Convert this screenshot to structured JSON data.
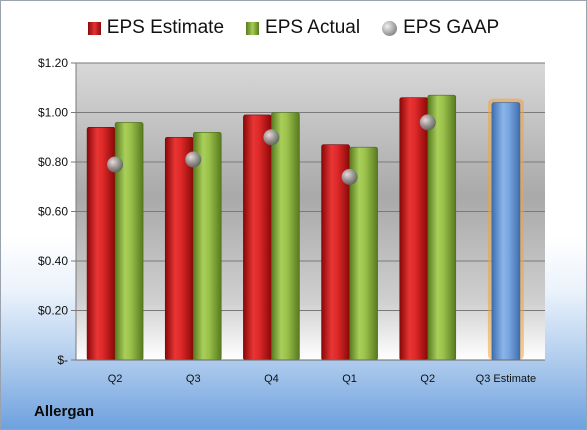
{
  "legend": {
    "estimate": "EPS Estimate",
    "actual": "EPS Actual",
    "gaap": "EPS GAAP"
  },
  "company": "Allergan",
  "colors": {
    "estimate": "#d42020",
    "actual": "#8fb446",
    "gaap": "#9a9a9a",
    "forecast": "#6a9bd8",
    "forecast_glow": "#f4a340"
  },
  "chart_data": {
    "type": "bar",
    "categories": [
      "Q2",
      "Q3",
      "Q4",
      "Q1",
      "Q2",
      "Q3 Estimate"
    ],
    "series": [
      {
        "name": "EPS Estimate",
        "values": [
          0.94,
          0.9,
          0.99,
          0.87,
          1.06,
          null
        ]
      },
      {
        "name": "EPS Actual",
        "values": [
          0.96,
          0.92,
          1.0,
          0.86,
          1.07,
          null
        ]
      },
      {
        "name": "EPS GAAP",
        "values": [
          0.79,
          0.81,
          0.9,
          0.74,
          0.96,
          null
        ]
      },
      {
        "name": "Q3 Estimate",
        "values": [
          null,
          null,
          null,
          null,
          null,
          1.04
        ]
      }
    ],
    "ylim": [
      0,
      1.2
    ],
    "yticks": [
      {
        "value": 0,
        "label": "$-"
      },
      {
        "value": 0.2,
        "label": "$0.20"
      },
      {
        "value": 0.4,
        "label": "$0.40"
      },
      {
        "value": 0.6,
        "label": "$0.60"
      },
      {
        "value": 0.8,
        "label": "$0.80"
      },
      {
        "value": 1.0,
        "label": "$1.00"
      },
      {
        "value": 1.2,
        "label": "$1.20"
      }
    ],
    "grid": true,
    "legend_position": "top"
  }
}
